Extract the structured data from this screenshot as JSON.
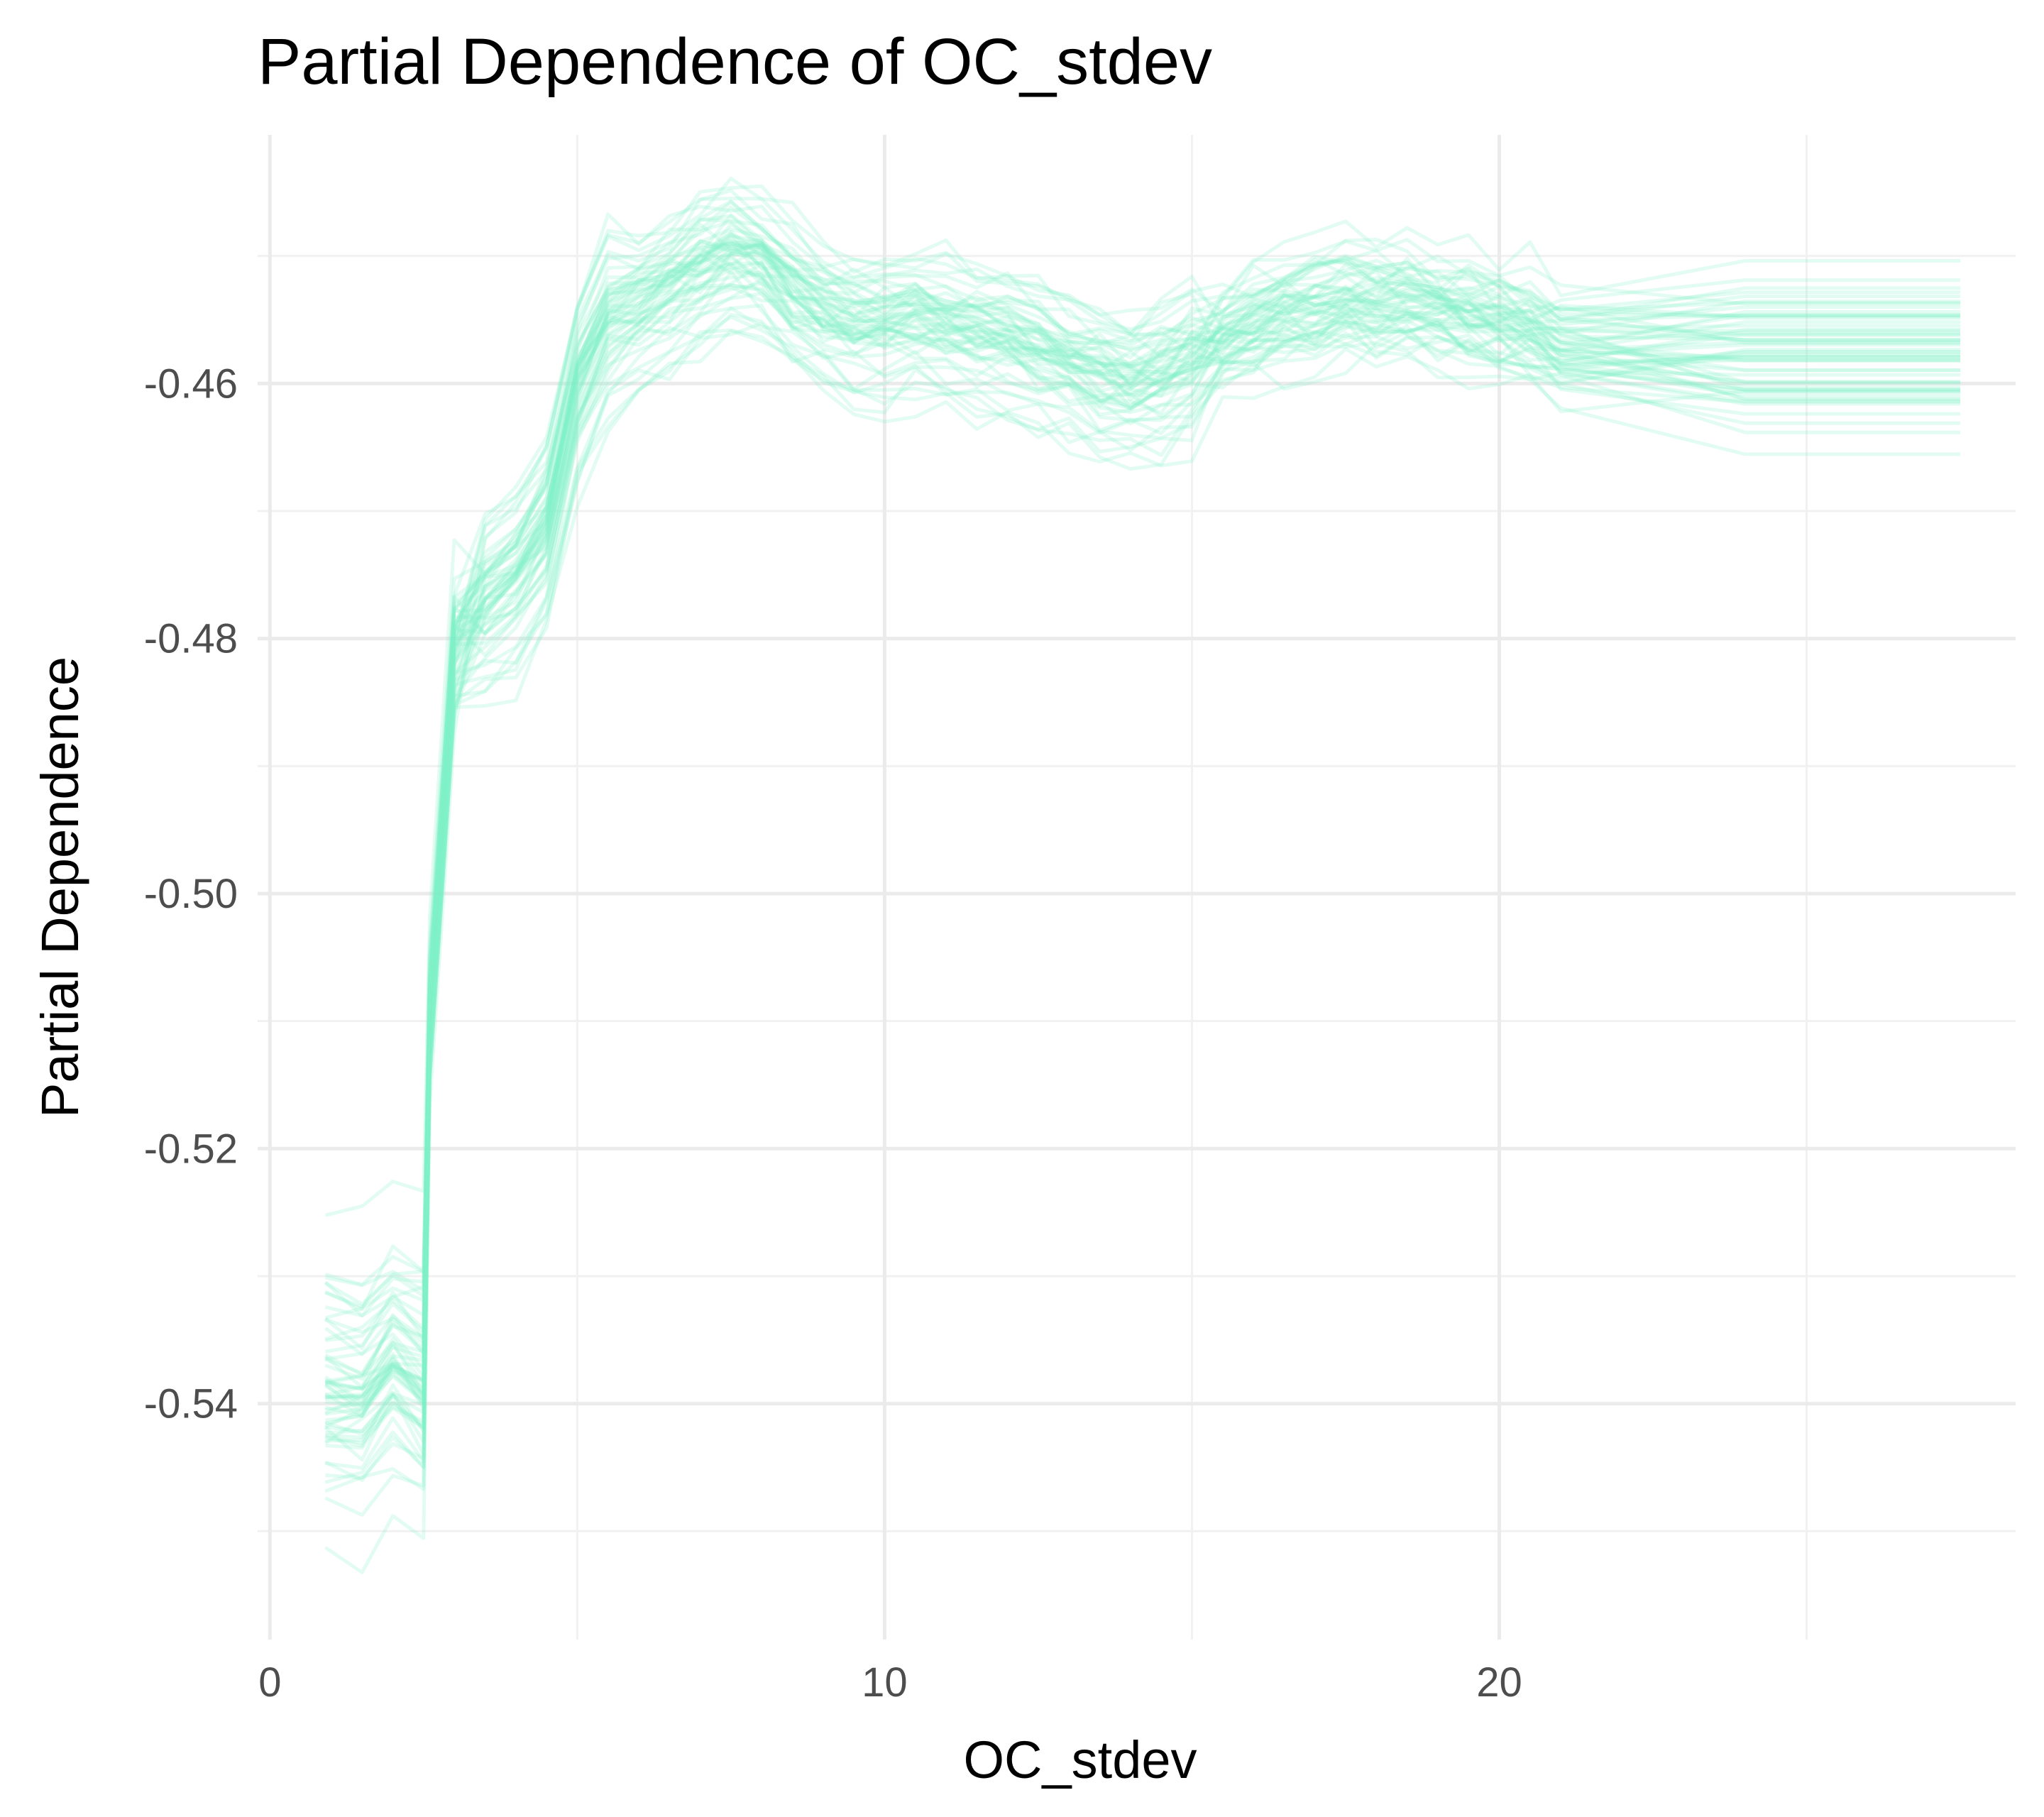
{
  "chart_data": {
    "type": "line",
    "title": "Partial Dependence of OC_stdev",
    "xlabel": "OC_stdev",
    "ylabel": "Partial Dependence",
    "xlim": [
      -0.2,
      28.4
    ],
    "ylim": [
      -0.5585,
      -0.4405
    ],
    "x_ticks": [
      0,
      10,
      20
    ],
    "x_tick_labels": [
      "0",
      "10",
      "20"
    ],
    "y_ticks": [
      -0.54,
      -0.52,
      -0.5,
      -0.48,
      -0.46
    ],
    "y_tick_labels": [
      "-0.54",
      "-0.52",
      "-0.50",
      "-0.48",
      "-0.46"
    ],
    "grid": true,
    "legend": "none",
    "line_color": "#7ef2c9",
    "line_opacity": 0.22,
    "series_count": 60,
    "x": [
      0.9,
      1.5,
      2.0,
      2.5,
      2.6,
      3.0,
      3.5,
      4.0,
      4.5,
      5.0,
      5.5,
      6.0,
      6.5,
      7.0,
      7.5,
      8.0,
      8.5,
      9.0,
      9.5,
      10.0,
      10.5,
      11.0,
      11.5,
      12.0,
      12.5,
      13.0,
      13.5,
      14.0,
      14.5,
      15.0,
      15.5,
      16.0,
      16.5,
      17.0,
      17.5,
      18.0,
      18.5,
      19.0,
      19.5,
      20.0,
      20.5,
      21.0,
      24.0,
      27.5
    ],
    "series_median": {
      "name": "",
      "values": [
        -0.5385,
        -0.539,
        -0.536,
        -0.538,
        -0.51,
        -0.481,
        -0.478,
        -0.476,
        -0.472,
        -0.461,
        -0.456,
        -0.4545,
        -0.453,
        -0.4515,
        -0.4505,
        -0.451,
        -0.4535,
        -0.455,
        -0.456,
        -0.456,
        -0.4555,
        -0.456,
        -0.4565,
        -0.457,
        -0.458,
        -0.459,
        -0.46,
        -0.4605,
        -0.46,
        -0.4585,
        -0.4565,
        -0.4555,
        -0.4545,
        -0.454,
        -0.4535,
        -0.4535,
        -0.4535,
        -0.454,
        -0.4545,
        -0.455,
        -0.456,
        -0.457,
        -0.457,
        -0.457
      ]
    }
  }
}
